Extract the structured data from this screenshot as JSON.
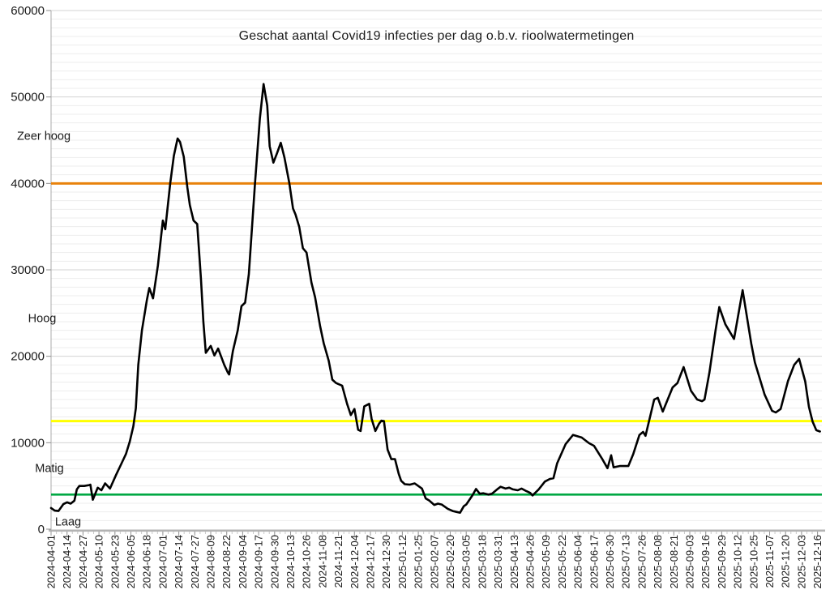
{
  "chart_data": {
    "type": "line",
    "title": "Geschat aantal Covid19 infecties per dag o.b.v. rioolwatermetingen",
    "xlabel": "",
    "ylabel": "",
    "ylim": [
      0,
      60000
    ],
    "y_tick_step": 10000,
    "y_minor_step": 1000,
    "y_tick_labels": [
      "0",
      "10000",
      "20000",
      "30000",
      "40000",
      "50000",
      "60000"
    ],
    "grid": "horizontal-only",
    "legend": "none",
    "x_start_date": "2024-04-01",
    "x_tick_interval_days": 13,
    "x_tick_labels": [
      "2024-04-01",
      "2024-04-14",
      "2024-04-27",
      "2024-05-10",
      "2024-05-23",
      "2024-06-05",
      "2024-06-18",
      "2024-07-01",
      "2024-07-14",
      "2024-07-27",
      "2024-08-09",
      "2024-08-22",
      "2024-09-04",
      "2024-09-17",
      "2024-09-30",
      "2024-10-13",
      "2024-10-26",
      "2024-11-08",
      "2024-11-21",
      "2024-12-04",
      "2024-12-17",
      "2024-12-30",
      "2025-01-12",
      "2025-01-25",
      "2025-02-07",
      "2025-02-20",
      "2025-03-05",
      "2025-03-18",
      "2025-03-31",
      "2025-04-13",
      "2025-04-26",
      "2025-05-09",
      "2025-05-22",
      "2025-06-04",
      "2025-06-17",
      "2025-06-30",
      "2025-07-13",
      "2025-07-26",
      "2025-08-08",
      "2025-08-21",
      "2025-09-03",
      "2025-09-16",
      "2025-09-29",
      "2025-10-12",
      "2025-10-25",
      "2025-11-07",
      "2025-11-20",
      "2025-12-03",
      "2025-12-16"
    ],
    "thresholds": [
      {
        "value": 40000,
        "color": "#E8820C"
      },
      {
        "value": 12500,
        "color": "#FFFF00"
      },
      {
        "value": 4000,
        "color": "#00A843"
      }
    ],
    "level_labels": [
      {
        "text": "Zeer hoog",
        "value": 45500
      },
      {
        "text": "Hoog",
        "value": 24400
      },
      {
        "text": "Matig",
        "value": 7100
      },
      {
        "text": "Laag",
        "value": 900
      }
    ],
    "series": [
      {
        "color": "#000000",
        "points_format": [
          "days_since_2024-04-01",
          "estimated_infections_per_day"
        ],
        "points": [
          [
            0,
            2450
          ],
          [
            3,
            2150
          ],
          [
            6,
            2100
          ],
          [
            10,
            2900
          ],
          [
            13,
            3100
          ],
          [
            16,
            2950
          ],
          [
            19,
            3300
          ],
          [
            21,
            4600
          ],
          [
            23,
            5000
          ],
          [
            27,
            5000
          ],
          [
            31,
            5100
          ],
          [
            32,
            5150
          ],
          [
            34,
            3400
          ],
          [
            38,
            4800
          ],
          [
            41,
            4500
          ],
          [
            44,
            5300
          ],
          [
            48,
            4700
          ],
          [
            53,
            6300
          ],
          [
            57,
            7500
          ],
          [
            61,
            8700
          ],
          [
            64,
            10100
          ],
          [
            67,
            11900
          ],
          [
            69,
            14000
          ],
          [
            71,
            19000
          ],
          [
            74,
            23000
          ],
          [
            78,
            26500
          ],
          [
            80,
            27900
          ],
          [
            83,
            26700
          ],
          [
            87,
            30500
          ],
          [
            91,
            35700
          ],
          [
            93,
            34700
          ],
          [
            97,
            40000
          ],
          [
            100,
            43200
          ],
          [
            103,
            45200
          ],
          [
            105,
            44800
          ],
          [
            108,
            43100
          ],
          [
            111,
            39500
          ],
          [
            113,
            37500
          ],
          [
            116,
            35700
          ],
          [
            119,
            35300
          ],
          [
            122,
            29000
          ],
          [
            124,
            24000
          ],
          [
            126,
            20400
          ],
          [
            130,
            21200
          ],
          [
            133,
            20100
          ],
          [
            136,
            20900
          ],
          [
            141,
            19000
          ],
          [
            144,
            18100
          ],
          [
            145,
            17900
          ],
          [
            148,
            20600
          ],
          [
            152,
            23000
          ],
          [
            155,
            25800
          ],
          [
            158,
            26200
          ],
          [
            161,
            29500
          ],
          [
            166,
            40000
          ],
          [
            170,
            47500
          ],
          [
            173,
            51500
          ],
          [
            176,
            49000
          ],
          [
            178,
            44300
          ],
          [
            181,
            42400
          ],
          [
            184,
            43500
          ],
          [
            187,
            44700
          ],
          [
            190,
            43000
          ],
          [
            194,
            40000
          ],
          [
            197,
            37100
          ],
          [
            199,
            36400
          ],
          [
            202,
            35000
          ],
          [
            205,
            32500
          ],
          [
            208,
            32000
          ],
          [
            212,
            28500
          ],
          [
            215,
            26800
          ],
          [
            219,
            23500
          ],
          [
            222,
            21500
          ],
          [
            226,
            19500
          ],
          [
            229,
            17300
          ],
          [
            232,
            16900
          ],
          [
            237,
            16600
          ],
          [
            241,
            14500
          ],
          [
            244,
            13200
          ],
          [
            247,
            13900
          ],
          [
            250,
            11500
          ],
          [
            252,
            11350
          ],
          [
            255,
            14200
          ],
          [
            259,
            14500
          ],
          [
            261,
            12750
          ],
          [
            264,
            11350
          ],
          [
            267,
            12200
          ],
          [
            269,
            12550
          ],
          [
            271,
            12500
          ],
          [
            274,
            9200
          ],
          [
            277,
            8100
          ],
          [
            280,
            8100
          ],
          [
            283,
            6400
          ],
          [
            285,
            5600
          ],
          [
            288,
            5200
          ],
          [
            292,
            5150
          ],
          [
            296,
            5300
          ],
          [
            302,
            4700
          ],
          [
            305,
            3550
          ],
          [
            308,
            3300
          ],
          [
            312,
            2800
          ],
          [
            315,
            2950
          ],
          [
            318,
            2850
          ],
          [
            323,
            2350
          ],
          [
            327,
            2100
          ],
          [
            330,
            2000
          ],
          [
            333,
            1900
          ],
          [
            336,
            2650
          ],
          [
            338,
            2850
          ],
          [
            343,
            3900
          ],
          [
            346,
            4650
          ],
          [
            349,
            4100
          ],
          [
            352,
            4150
          ],
          [
            356,
            4000
          ],
          [
            359,
            4100
          ],
          [
            364,
            4700
          ],
          [
            366,
            4900
          ],
          [
            370,
            4700
          ],
          [
            373,
            4800
          ],
          [
            376,
            4600
          ],
          [
            380,
            4500
          ],
          [
            383,
            4700
          ],
          [
            387,
            4400
          ],
          [
            390,
            4200
          ],
          [
            392,
            3900
          ],
          [
            397,
            4600
          ],
          [
            402,
            5500
          ],
          [
            406,
            5800
          ],
          [
            409,
            5900
          ],
          [
            412,
            7600
          ],
          [
            419,
            9850
          ],
          [
            425,
            10900
          ],
          [
            432,
            10600
          ],
          [
            438,
            9950
          ],
          [
            442,
            9650
          ],
          [
            449,
            8050
          ],
          [
            453,
            7050
          ],
          [
            456,
            8550
          ],
          [
            458,
            7150
          ],
          [
            463,
            7300
          ],
          [
            470,
            7300
          ],
          [
            474,
            8700
          ],
          [
            479,
            10900
          ],
          [
            482,
            11250
          ],
          [
            484,
            10800
          ],
          [
            491,
            15000
          ],
          [
            494,
            15200
          ],
          [
            498,
            13600
          ],
          [
            506,
            16400
          ],
          [
            510,
            16900
          ],
          [
            515,
            18750
          ],
          [
            521,
            16000
          ],
          [
            526,
            15000
          ],
          [
            530,
            14800
          ],
          [
            532,
            15000
          ],
          [
            536,
            18100
          ],
          [
            541,
            23000
          ],
          [
            544,
            25700
          ],
          [
            549,
            23700
          ],
          [
            556,
            22000
          ],
          [
            563,
            27650
          ],
          [
            570,
            21500
          ],
          [
            573,
            19300
          ],
          [
            581,
            15550
          ],
          [
            587,
            13700
          ],
          [
            590,
            13500
          ],
          [
            594,
            13900
          ],
          [
            600,
            17150
          ],
          [
            605,
            19000
          ],
          [
            609,
            19700
          ],
          [
            614,
            17100
          ],
          [
            617,
            14150
          ],
          [
            620,
            12450
          ],
          [
            623,
            11450
          ],
          [
            626,
            11300
          ]
        ]
      }
    ]
  }
}
